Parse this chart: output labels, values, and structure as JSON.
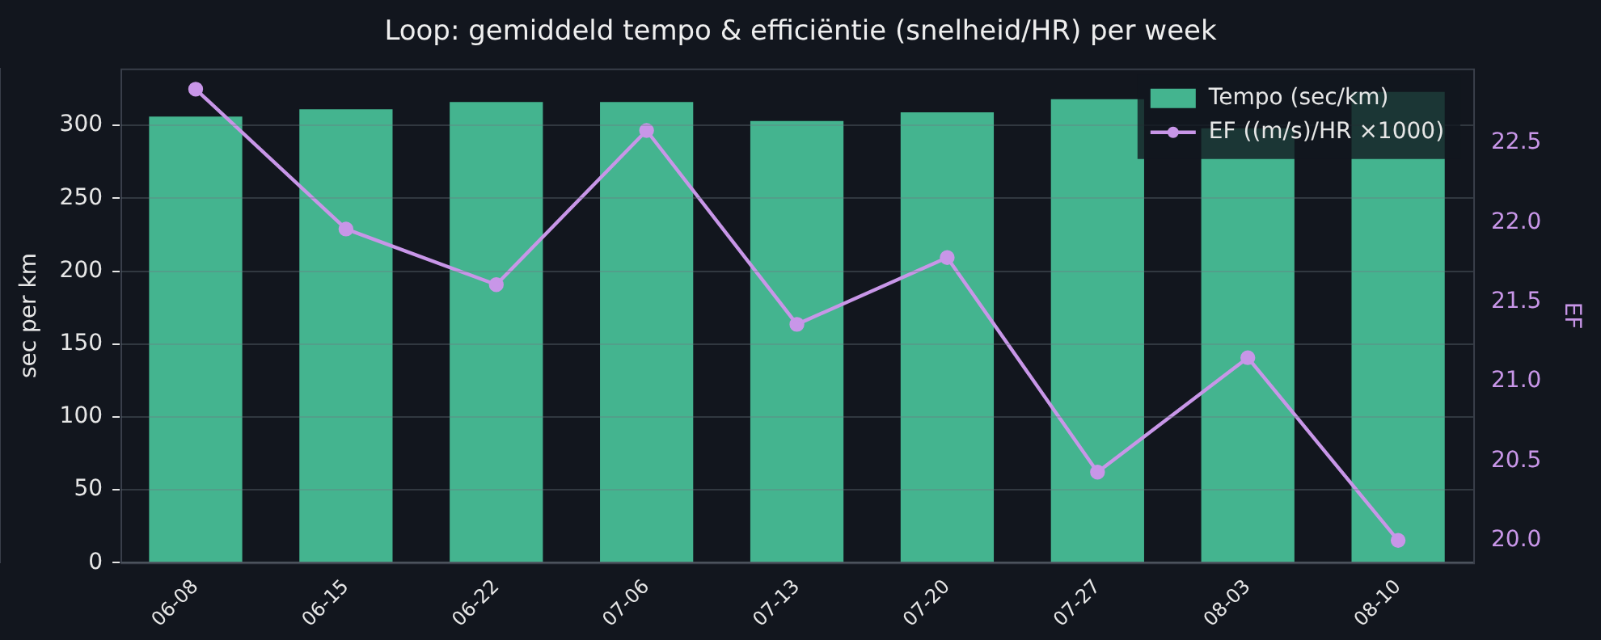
{
  "chart_data": {
    "type": "bar",
    "title": "Loop: gemiddeld tempo & efficiëntie (snelheid/HR) per week",
    "categories": [
      "06-08",
      "06-15",
      "06-22",
      "07-06",
      "07-13",
      "07-20",
      "07-27",
      "08-03",
      "08-10"
    ],
    "series": [
      {
        "name": "Tempo (sec/km)",
        "color": "#44b48f",
        "values": [
          306,
          311,
          316,
          316,
          303,
          309,
          318,
          298,
          323
        ]
      },
      {
        "name": "EF ((m/s)/HR ×1000)",
        "type": "line",
        "axis": "y2",
        "color": "#c896e8",
        "values": [
          22.84,
          21.96,
          21.61,
          22.58,
          21.36,
          21.78,
          20.43,
          21.15,
          20.0
        ]
      }
    ],
    "ylabel": "sec per km",
    "y2label": "EF",
    "ylim": [
      0,
      339
    ],
    "yticks": [
      0,
      50,
      100,
      150,
      200,
      250,
      300
    ],
    "y2lim": [
      19.86,
      22.97
    ],
    "y2ticks": [
      {
        "value": 20,
        "label": "20.0"
      },
      {
        "value": 20.5,
        "label": "20.5"
      },
      {
        "value": 21,
        "label": "21.0"
      },
      {
        "value": 21.5,
        "label": "21.5"
      },
      {
        "value": 22,
        "label": "22.0"
      },
      {
        "value": 22.5,
        "label": "22.5"
      }
    ],
    "grid": "y",
    "legend": "top right",
    "marker": "circle",
    "line_style": "solid"
  }
}
